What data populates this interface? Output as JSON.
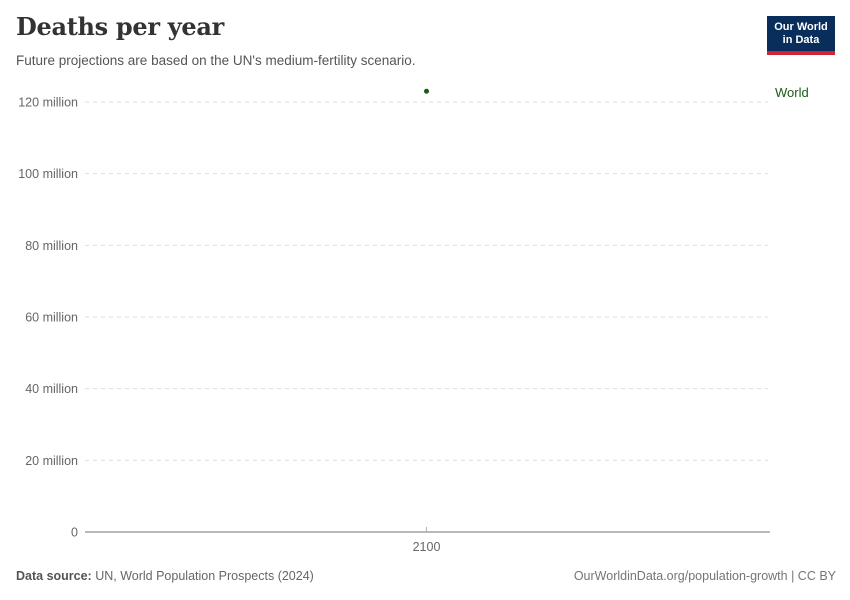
{
  "header": {
    "title": "Deaths per year",
    "subtitle": "Future projections are based on the UN's medium-fertility scenario."
  },
  "logo": {
    "line1": "Our World",
    "line2": "in Data"
  },
  "chart_data": {
    "type": "scatter",
    "title": "Deaths per year",
    "subtitle": "Future projections are based on the UN's medium-fertility scenario.",
    "xlabel": "",
    "ylabel": "",
    "xlim": [
      2050,
      2150
    ],
    "ylim": [
      0,
      120000000
    ],
    "grid": "horizontal-dashed",
    "legend_position": "entity-label-right-of-plot",
    "x_ticks": [
      {
        "value": 2100,
        "label": "2100"
      }
    ],
    "y_ticks": [
      {
        "value": 0,
        "label": "0"
      },
      {
        "value": 20000000,
        "label": "20 million"
      },
      {
        "value": 40000000,
        "label": "40 million"
      },
      {
        "value": 60000000,
        "label": "60 million"
      },
      {
        "value": 80000000,
        "label": "80 million"
      },
      {
        "value": 100000000,
        "label": "100 million"
      },
      {
        "value": 120000000,
        "label": "120 million"
      }
    ],
    "series": [
      {
        "name": "World",
        "points": [
          {
            "x": 2100,
            "y": 123000000
          }
        ]
      }
    ]
  },
  "footer": {
    "source_label": "Data source:",
    "source_text": " UN, World Population Prospects (2024)",
    "right_text": "OurWorldinData.org/population-growth | CC BY"
  },
  "colors": {
    "series_green": "#1a5a1a",
    "logo_navy": "#0a2e5c",
    "logo_red": "#cf2433",
    "grid_line": "#dddddd",
    "axis_line": "#8f8f8f",
    "tick_mark": "#b0b0b0",
    "tick_text": "#666666",
    "title_text": "#333333",
    "subtitle_text": "#555555"
  }
}
